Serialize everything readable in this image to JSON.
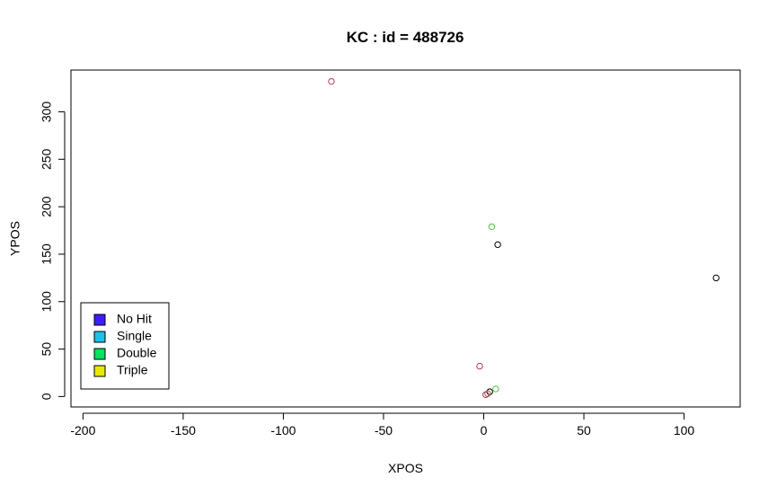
{
  "chart_data": {
    "type": "scatter",
    "title": "KC  : id = 488726",
    "xlabel": "XPOS",
    "ylabel": "YPOS",
    "xlim": [
      -206,
      128
    ],
    "ylim": [
      -11,
      344
    ],
    "x_ticks": [
      -200,
      -150,
      -100,
      -50,
      0,
      50,
      100
    ],
    "y_ticks": [
      0,
      50,
      100,
      150,
      200,
      250,
      300
    ],
    "grid": false,
    "legend_position": "bottom-left",
    "legend": [
      {
        "label": "No Hit",
        "color": "#3d1cff"
      },
      {
        "label": "Single",
        "color": "#19c2e8"
      },
      {
        "label": "Double",
        "color": "#00e35f"
      },
      {
        "label": "Triple",
        "color": "#e8e800"
      }
    ],
    "points": [
      {
        "x": -76,
        "y": 332,
        "color": "#b8336a"
      },
      {
        "x": 4,
        "y": 179,
        "color": "#4cc33a"
      },
      {
        "x": 7,
        "y": 160,
        "color": "#000000"
      },
      {
        "x": 116,
        "y": 125,
        "color": "#000000"
      },
      {
        "x": -2,
        "y": 32,
        "color": "#b8336a"
      },
      {
        "x": 6,
        "y": 8,
        "color": "#4cc33a"
      },
      {
        "x": 3,
        "y": 5,
        "color": "#000000"
      },
      {
        "x": 2,
        "y": 3,
        "color": "#8a6a3a"
      },
      {
        "x": 1,
        "y": 2,
        "color": "#b8336a"
      }
    ]
  }
}
